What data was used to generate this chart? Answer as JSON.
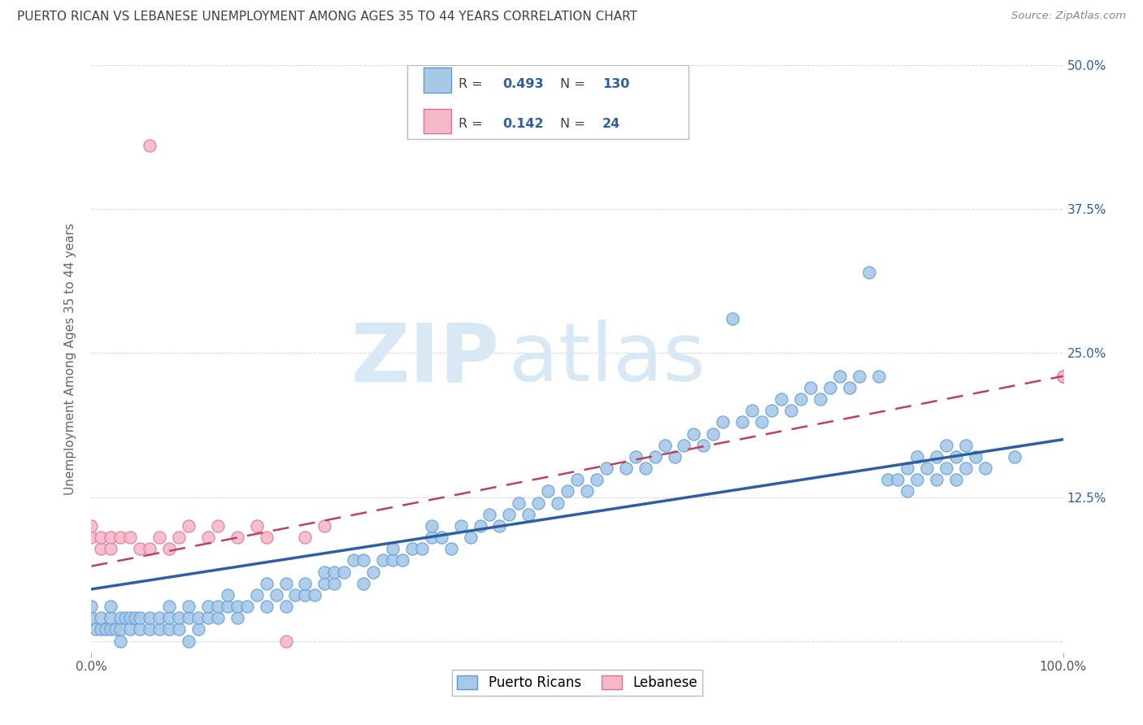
{
  "title": "PUERTO RICAN VS LEBANESE UNEMPLOYMENT AMONG AGES 35 TO 44 YEARS CORRELATION CHART",
  "source": "Source: ZipAtlas.com",
  "ylabel": "Unemployment Among Ages 35 to 44 years",
  "legend_labels": [
    "Puerto Ricans",
    "Lebanese"
  ],
  "blue_R": "0.493",
  "blue_N": "130",
  "pink_R": "0.142",
  "pink_N": "24",
  "blue_color": "#A8C8E8",
  "pink_color": "#F4B8C8",
  "blue_edge_color": "#5B9BD5",
  "pink_edge_color": "#E07090",
  "blue_line_color": "#2E5FA3",
  "pink_line_color": "#C04060",
  "watermark_zip": "ZIP",
  "watermark_atlas": "atlas",
  "background_color": "#FFFFFF",
  "grid_color": "#CCCCCC",
  "title_color": "#404040",
  "stats_text_color": "#404040",
  "stats_value_color": "#2E5FA3",
  "right_tick_color": "#2E5FA3",
  "xlim": [
    0.0,
    1.0
  ],
  "ylim": [
    -0.01,
    0.5
  ],
  "y_ticks": [
    0.0,
    0.125,
    0.25,
    0.375,
    0.5
  ],
  "blue_scatter_x": [
    0.0,
    0.0,
    0.005,
    0.01,
    0.01,
    0.015,
    0.02,
    0.02,
    0.02,
    0.025,
    0.03,
    0.03,
    0.03,
    0.035,
    0.04,
    0.04,
    0.045,
    0.05,
    0.05,
    0.06,
    0.06,
    0.07,
    0.07,
    0.08,
    0.08,
    0.08,
    0.09,
    0.09,
    0.1,
    0.1,
    0.1,
    0.11,
    0.11,
    0.12,
    0.12,
    0.13,
    0.13,
    0.14,
    0.14,
    0.15,
    0.15,
    0.16,
    0.17,
    0.18,
    0.18,
    0.19,
    0.2,
    0.2,
    0.21,
    0.22,
    0.22,
    0.23,
    0.24,
    0.24,
    0.25,
    0.25,
    0.26,
    0.27,
    0.28,
    0.28,
    0.29,
    0.3,
    0.31,
    0.31,
    0.32,
    0.33,
    0.34,
    0.35,
    0.35,
    0.36,
    0.37,
    0.38,
    0.39,
    0.4,
    0.41,
    0.42,
    0.43,
    0.44,
    0.45,
    0.46,
    0.47,
    0.48,
    0.49,
    0.5,
    0.51,
    0.52,
    0.53,
    0.55,
    0.56,
    0.57,
    0.58,
    0.59,
    0.6,
    0.61,
    0.62,
    0.63,
    0.64,
    0.65,
    0.66,
    0.67,
    0.68,
    0.69,
    0.7,
    0.71,
    0.72,
    0.73,
    0.74,
    0.75,
    0.76,
    0.77,
    0.78,
    0.79,
    0.8,
    0.81,
    0.82,
    0.83,
    0.84,
    0.84,
    0.85,
    0.85,
    0.86,
    0.87,
    0.87,
    0.88,
    0.88,
    0.89,
    0.89,
    0.9,
    0.9,
    0.91,
    0.92,
    0.95,
    1.0
  ],
  "blue_scatter_y": [
    0.02,
    0.03,
    0.01,
    0.01,
    0.02,
    0.01,
    0.01,
    0.02,
    0.03,
    0.01,
    0.0,
    0.01,
    0.02,
    0.02,
    0.01,
    0.02,
    0.02,
    0.01,
    0.02,
    0.01,
    0.02,
    0.01,
    0.02,
    0.01,
    0.02,
    0.03,
    0.01,
    0.02,
    0.0,
    0.02,
    0.03,
    0.01,
    0.02,
    0.02,
    0.03,
    0.02,
    0.03,
    0.03,
    0.04,
    0.02,
    0.03,
    0.03,
    0.04,
    0.03,
    0.05,
    0.04,
    0.03,
    0.05,
    0.04,
    0.04,
    0.05,
    0.04,
    0.05,
    0.06,
    0.05,
    0.06,
    0.06,
    0.07,
    0.05,
    0.07,
    0.06,
    0.07,
    0.07,
    0.08,
    0.07,
    0.08,
    0.08,
    0.09,
    0.1,
    0.09,
    0.08,
    0.1,
    0.09,
    0.1,
    0.11,
    0.1,
    0.11,
    0.12,
    0.11,
    0.12,
    0.13,
    0.12,
    0.13,
    0.14,
    0.13,
    0.14,
    0.15,
    0.15,
    0.16,
    0.15,
    0.16,
    0.17,
    0.16,
    0.17,
    0.18,
    0.17,
    0.18,
    0.19,
    0.28,
    0.19,
    0.2,
    0.19,
    0.2,
    0.21,
    0.2,
    0.21,
    0.22,
    0.21,
    0.22,
    0.23,
    0.22,
    0.23,
    0.32,
    0.23,
    0.14,
    0.14,
    0.13,
    0.15,
    0.14,
    0.16,
    0.15,
    0.14,
    0.16,
    0.15,
    0.17,
    0.14,
    0.16,
    0.15,
    0.17,
    0.16,
    0.15,
    0.16,
    0.23
  ],
  "pink_scatter_x": [
    0.0,
    0.0,
    0.01,
    0.01,
    0.02,
    0.02,
    0.03,
    0.04,
    0.05,
    0.06,
    0.07,
    0.08,
    0.09,
    0.1,
    0.12,
    0.13,
    0.15,
    0.17,
    0.18,
    0.2,
    0.22,
    0.24,
    0.06,
    1.0
  ],
  "pink_scatter_y": [
    0.09,
    0.1,
    0.08,
    0.09,
    0.08,
    0.09,
    0.09,
    0.09,
    0.08,
    0.08,
    0.09,
    0.08,
    0.09,
    0.1,
    0.09,
    0.1,
    0.09,
    0.1,
    0.09,
    0.0,
    0.09,
    0.1,
    0.43,
    0.23
  ],
  "blue_trend_x": [
    0.0,
    1.0
  ],
  "blue_trend_y": [
    0.045,
    0.175
  ],
  "pink_trend_x": [
    0.0,
    1.0
  ],
  "pink_trend_y": [
    0.065,
    0.23
  ]
}
